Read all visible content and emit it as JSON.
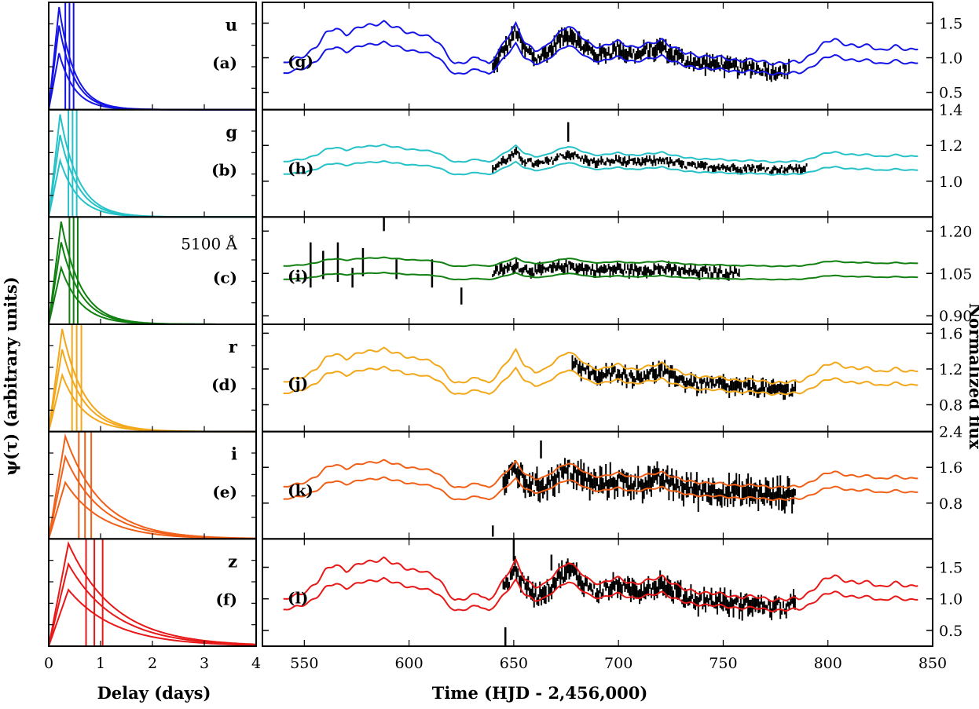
{
  "labels": {
    "left_ylabel": "ψ(τ) (arbitrary units)",
    "left_xlabel": "Delay (days)",
    "right_xlabel": "Time (HJD - 2,456,000)",
    "right_ylabel": "Normalized flux"
  },
  "chart_data": {
    "type": "line",
    "left_xlim": [
      0,
      4
    ],
    "left_xticks": [
      "0",
      "1",
      "2",
      "3",
      "4"
    ],
    "right_xlim": [
      530,
      850
    ],
    "right_xticks": [
      "550",
      "600",
      "650",
      "700",
      "750",
      "800",
      "850"
    ],
    "panels": [
      {
        "band": "u",
        "left_label": "(a)",
        "right_label": "(g)",
        "color": "#1414e6",
        "transfer_peak_delay": 0.2,
        "transfer_decay": 0.3,
        "transfer_amps": [
          0.55,
          0.82,
          1.0
        ],
        "vlines": [
          0.32,
          0.4,
          0.48
        ],
        "ylim": [
          0.25,
          1.8
        ],
        "yticks": [
          0.5,
          1.0,
          1.5
        ],
        "ytick_labels": [
          "0.5",
          "1.0",
          "1.5"
        ],
        "model_scale": [
          0.85,
          0.65
        ],
        "obs_start": 640,
        "obs_end": 782,
        "obs_noise": 0.05,
        "obs_outliers": []
      },
      {
        "band": "g",
        "left_label": "(b)",
        "right_label": "(h)",
        "color": "#26c2c8",
        "transfer_peak_delay": 0.22,
        "transfer_decay": 0.35,
        "transfer_amps": [
          0.55,
          0.8,
          1.0
        ],
        "vlines": [
          0.38,
          0.46,
          0.54
        ],
        "ylim": [
          0.8,
          1.4
        ],
        "yticks": [
          1.0,
          1.2,
          1.4
        ],
        "ytick_labels": [
          "1.0",
          "1.2",
          "1.4"
        ],
        "model_scale": [
          0.35,
          0.27
        ],
        "obs_start": 640,
        "obs_end": 790,
        "obs_noise": 0.025,
        "obs_outliers": [
          [
            676,
            1.33,
            1.22
          ]
        ]
      },
      {
        "band": "5100 Å",
        "left_label": "(c)",
        "right_label": "(i)",
        "color": "#108010",
        "transfer_peak_delay": 0.24,
        "transfer_decay": 0.38,
        "transfer_amps": [
          0.55,
          0.8,
          1.0
        ],
        "vlines": [
          0.4,
          0.48,
          0.56
        ],
        "ylim": [
          0.87,
          1.25
        ],
        "yticks": [
          0.9,
          1.05,
          1.2
        ],
        "ytick_labels": [
          "0.90",
          "1.05",
          "1.20"
        ],
        "model_scale": [
          0.18,
          0.14
        ],
        "obs_start": 640,
        "obs_end": 758,
        "obs_noise": 0.035,
        "obs_outliers": [
          [
            553,
            1.0,
            1.16
          ],
          [
            559,
            1.03,
            1.13
          ],
          [
            566,
            1.02,
            1.16
          ],
          [
            573,
            1.0,
            1.07
          ],
          [
            578,
            1.04,
            1.14
          ],
          [
            588,
            1.2,
            1.28
          ],
          [
            594,
            1.03,
            1.1
          ],
          [
            611,
            1.0,
            1.1
          ],
          [
            625,
            0.94,
            1.0
          ]
        ]
      },
      {
        "band": "r",
        "left_label": "(d)",
        "right_label": "(j)",
        "color": "#f2a81a",
        "transfer_peak_delay": 0.26,
        "transfer_decay": 0.42,
        "transfer_amps": [
          0.55,
          0.8,
          1.0
        ],
        "vlines": [
          0.45,
          0.54,
          0.63
        ],
        "ylim": [
          0.5,
          1.7
        ],
        "yticks": [
          0.8,
          1.2,
          1.6
        ],
        "ytick_labels": [
          "0.8",
          "1.2",
          "1.6"
        ],
        "model_scale": [
          0.7,
          0.55
        ],
        "obs_start": 678,
        "obs_end": 785,
        "obs_noise": 0.05,
        "obs_outliers": []
      },
      {
        "band": "i",
        "left_label": "(e)",
        "right_label": "(k)",
        "color": "#f06018",
        "transfer_peak_delay": 0.32,
        "transfer_decay": 0.7,
        "transfer_amps": [
          0.55,
          0.8,
          1.0
        ],
        "vlines": [
          0.58,
          0.7,
          0.82
        ],
        "ylim": [
          0.0,
          2.4
        ],
        "yticks": [
          0.8,
          1.6,
          2.4
        ],
        "ytick_labels": [
          "0.8",
          "1.6",
          "2.4"
        ],
        "model_scale": [
          0.55,
          0.45
        ],
        "obs_start": 645,
        "obs_end": 785,
        "obs_noise": 0.08,
        "obs_outliers": [
          [
            663,
            1.8,
            2.2
          ],
          [
            640,
            0.05,
            0.3
          ]
        ]
      },
      {
        "band": "z",
        "left_label": "(f)",
        "right_label": "(l)",
        "color": "#e81818",
        "transfer_peak_delay": 0.38,
        "transfer_decay": 0.9,
        "transfer_amps": [
          0.55,
          0.8,
          1.0
        ],
        "vlines": [
          0.72,
          0.88,
          1.04
        ],
        "ylim": [
          0.25,
          1.95
        ],
        "yticks": [
          0.5,
          1.0,
          1.5
        ],
        "ytick_labels": [
          "0.5",
          "1.0",
          "1.5"
        ],
        "model_scale": [
          0.85,
          0.65
        ],
        "obs_start": 645,
        "obs_end": 785,
        "obs_noise": 0.06,
        "obs_outliers": [
          [
            650,
            1.6,
            1.95
          ],
          [
            646,
            0.25,
            0.55
          ],
          [
            668,
            1.45,
            1.7
          ]
        ]
      }
    ],
    "base_curve_knots": [
      [
        540,
        -0.55
      ],
      [
        548,
        -0.35
      ],
      [
        556,
        0.1
      ],
      [
        560,
        0.5
      ],
      [
        565,
        0.75
      ],
      [
        570,
        0.55
      ],
      [
        576,
        0.75
      ],
      [
        582,
        0.85
      ],
      [
        588,
        1.0
      ],
      [
        592,
        0.8
      ],
      [
        598,
        0.6
      ],
      [
        606,
        0.55
      ],
      [
        614,
        0.2
      ],
      [
        622,
        -0.55
      ],
      [
        628,
        -0.5
      ],
      [
        633,
        -0.3
      ],
      [
        638,
        -0.55
      ],
      [
        643,
        -0.1
      ],
      [
        648,
        0.5
      ],
      [
        651,
        0.9
      ],
      [
        655,
        0.3
      ],
      [
        660,
        -0.1
      ],
      [
        665,
        0.0
      ],
      [
        670,
        0.5
      ],
      [
        676,
        0.85
      ],
      [
        680,
        0.55
      ],
      [
        686,
        0.2
      ],
      [
        692,
        0.05
      ],
      [
        700,
        0.25
      ],
      [
        708,
        0.05
      ],
      [
        715,
        0.15
      ],
      [
        721,
        0.35
      ],
      [
        726,
        0.05
      ],
      [
        732,
        -0.2
      ],
      [
        740,
        -0.25
      ],
      [
        748,
        -0.35
      ],
      [
        756,
        -0.4
      ],
      [
        764,
        -0.45
      ],
      [
        772,
        -0.5
      ],
      [
        780,
        -0.55
      ],
      [
        786,
        -0.5
      ],
      [
        792,
        -0.2
      ],
      [
        798,
        0.15
      ],
      [
        803,
        0.35
      ],
      [
        808,
        0.2
      ],
      [
        814,
        0.05
      ],
      [
        820,
        0.1
      ],
      [
        826,
        -0.05
      ],
      [
        832,
        0.05
      ],
      [
        838,
        -0.05
      ],
      [
        843,
        0.05
      ]
    ]
  }
}
